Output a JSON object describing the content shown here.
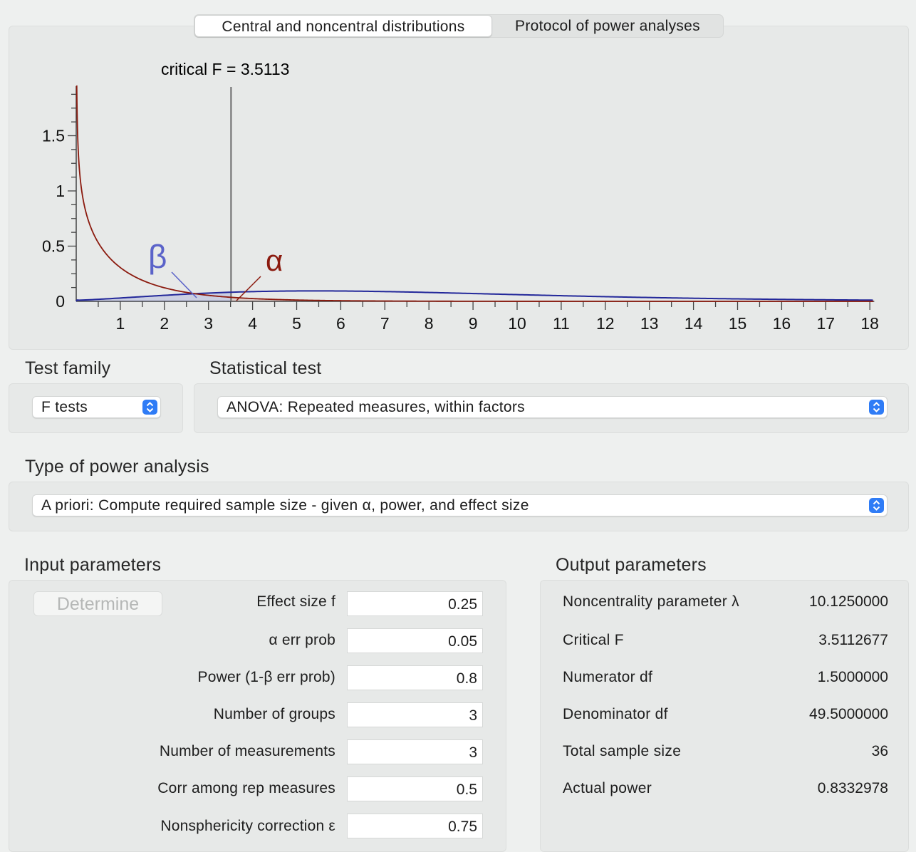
{
  "tabs": [
    {
      "label": "Central and noncentral distributions",
      "active": true
    },
    {
      "label": "Protocol of power analyses",
      "active": false
    }
  ],
  "plot": {
    "critical_label": "critical F = 3.5113",
    "critical_f": 3.5113,
    "alpha_symbol": "α",
    "beta_symbol": "β",
    "colors": {
      "central": "#8b1a0e",
      "noncentral": "#23289a",
      "beta_label": "#5b63c9",
      "alpha_label": "#8b1a0e",
      "critical_line": "#6a6a6a"
    },
    "x_ticks": [
      "1",
      "2",
      "3",
      "4",
      "5",
      "6",
      "7",
      "8",
      "9",
      "10",
      "11",
      "12",
      "13",
      "14",
      "15",
      "16",
      "17",
      "18"
    ],
    "y_ticks": [
      "0",
      "0.5",
      "1",
      "1.5"
    ],
    "x_range": [
      0,
      18.1
    ],
    "y_range": [
      0,
      1.95
    ],
    "df1": 1.5,
    "df2": 49.5,
    "lambda": 10.125
  },
  "test_family": {
    "heading": "Test family",
    "value": "F tests"
  },
  "statistical_test": {
    "heading": "Statistical test",
    "value": "ANOVA: Repeated measures, within factors"
  },
  "power_analysis": {
    "heading": "Type of power analysis",
    "value": "A priori: Compute required sample size - given α, power, and effect size"
  },
  "input": {
    "heading": "Input parameters",
    "determine_label": "Determine",
    "params": [
      {
        "label": "Effect size f",
        "value": "0.25"
      },
      {
        "label": "α err prob",
        "value": "0.05"
      },
      {
        "label": "Power (1-β err prob)",
        "value": "0.8"
      },
      {
        "label": "Number of groups",
        "value": "3"
      },
      {
        "label": "Number of measurements",
        "value": "3"
      },
      {
        "label": "Corr among rep measures",
        "value": "0.5"
      },
      {
        "label": "Nonsphericity correction ε",
        "value": "0.75"
      }
    ]
  },
  "output": {
    "heading": "Output parameters",
    "params": [
      {
        "label": "Noncentrality parameter λ",
        "value": "10.1250000"
      },
      {
        "label": "Critical F",
        "value": "3.5112677"
      },
      {
        "label": "Numerator df",
        "value": "1.5000000"
      },
      {
        "label": "Denominator df",
        "value": "49.5000000"
      },
      {
        "label": "Total sample size",
        "value": "36"
      },
      {
        "label": "Actual power",
        "value": "0.8332978"
      }
    ]
  }
}
